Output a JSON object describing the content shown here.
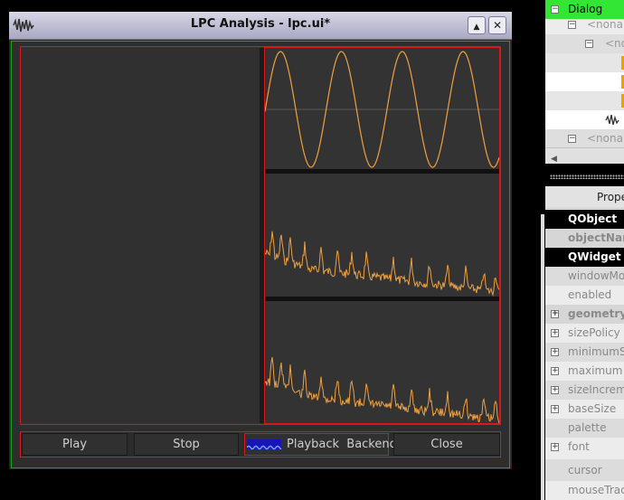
{
  "window": {
    "title": "LPC Analysis - lpc.ui*",
    "minimize_glyph": "▲",
    "close_glyph": "✕"
  },
  "buttons": {
    "play": "Play",
    "stop": "Stop",
    "backend": "Playback  Backend",
    "close": "Close"
  },
  "object_inspector": {
    "rows": [
      {
        "label": "Dialog",
        "highlight": true
      },
      {
        "label": "<nonam"
      },
      {
        "label": "<no"
      },
      {
        "label": ""
      },
      {
        "label": ""
      },
      {
        "label": ""
      },
      {
        "label": ""
      },
      {
        "label": "<nonam"
      }
    ]
  },
  "property_editor": {
    "header": "Prope",
    "rows": [
      {
        "label": "QObject",
        "style": "dark"
      },
      {
        "label": "objectNar",
        "style": "grey"
      },
      {
        "label": "QWidget",
        "style": "dark"
      },
      {
        "label": "windowMo",
        "style": "norm"
      },
      {
        "label": "enabled",
        "style": "norm"
      },
      {
        "label": "geometry",
        "style": "grey",
        "expand": true
      },
      {
        "label": "sizePolicy",
        "style": "norm",
        "expand": true
      },
      {
        "label": "minimumS",
        "style": "norm",
        "expand": true
      },
      {
        "label": "maximum",
        "style": "norm",
        "expand": true
      },
      {
        "label": "sizeIncrem",
        "style": "norm",
        "expand": true
      },
      {
        "label": "baseSize",
        "style": "norm",
        "expand": true
      },
      {
        "label": "palette",
        "style": "norm"
      },
      {
        "label": "font",
        "style": "norm",
        "expand": true
      },
      {
        "label": "cursor",
        "style": "norm"
      },
      {
        "label": "mouseTrac",
        "style": "norm"
      }
    ]
  },
  "colors": {
    "waveform": "#f0a040",
    "frame_red": "#d81919",
    "frame_green": "#17a517",
    "highlight_green": "#33e633"
  }
}
